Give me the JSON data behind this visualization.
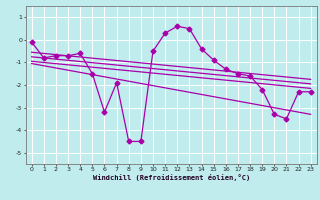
{
  "title": "",
  "xlabel": "Windchill (Refroidissement éolien,°C)",
  "ylabel": "",
  "bg_color": "#c0eced",
  "line_color": "#aa00aa",
  "grid_color": "#ffffff",
  "xlim": [
    -0.5,
    23.5
  ],
  "ylim": [
    -5.5,
    1.5
  ],
  "yticks": [
    1,
    0,
    -1,
    -2,
    -3,
    -4,
    -5
  ],
  "xticks": [
    0,
    1,
    2,
    3,
    4,
    5,
    6,
    7,
    8,
    9,
    10,
    11,
    12,
    13,
    14,
    15,
    16,
    17,
    18,
    19,
    20,
    21,
    22,
    23
  ],
  "main_line_x": [
    0,
    1,
    2,
    3,
    4,
    5,
    6,
    7,
    8,
    9,
    10,
    11,
    12,
    13,
    14,
    15,
    16,
    17,
    18,
    19,
    20,
    21,
    22,
    23
  ],
  "main_line_y": [
    -0.1,
    -0.8,
    -0.7,
    -0.7,
    -0.6,
    -1.5,
    -3.2,
    -1.9,
    -4.5,
    -4.5,
    -0.5,
    0.3,
    0.6,
    0.5,
    -0.4,
    -0.9,
    -1.3,
    -1.5,
    -1.6,
    -2.2,
    -3.3,
    -3.5,
    -2.3,
    -2.3
  ],
  "trend_lines": [
    {
      "x": [
        0,
        23
      ],
      "y": [
        -0.55,
        -1.75
      ]
    },
    {
      "x": [
        0,
        23
      ],
      "y": [
        -0.75,
        -1.95
      ]
    },
    {
      "x": [
        0,
        23
      ],
      "y": [
        -0.95,
        -2.15
      ]
    },
    {
      "x": [
        0,
        23
      ],
      "y": [
        -1.05,
        -3.3
      ]
    }
  ],
  "marker": "D",
  "markersize": 2.5,
  "linewidth": 0.9
}
